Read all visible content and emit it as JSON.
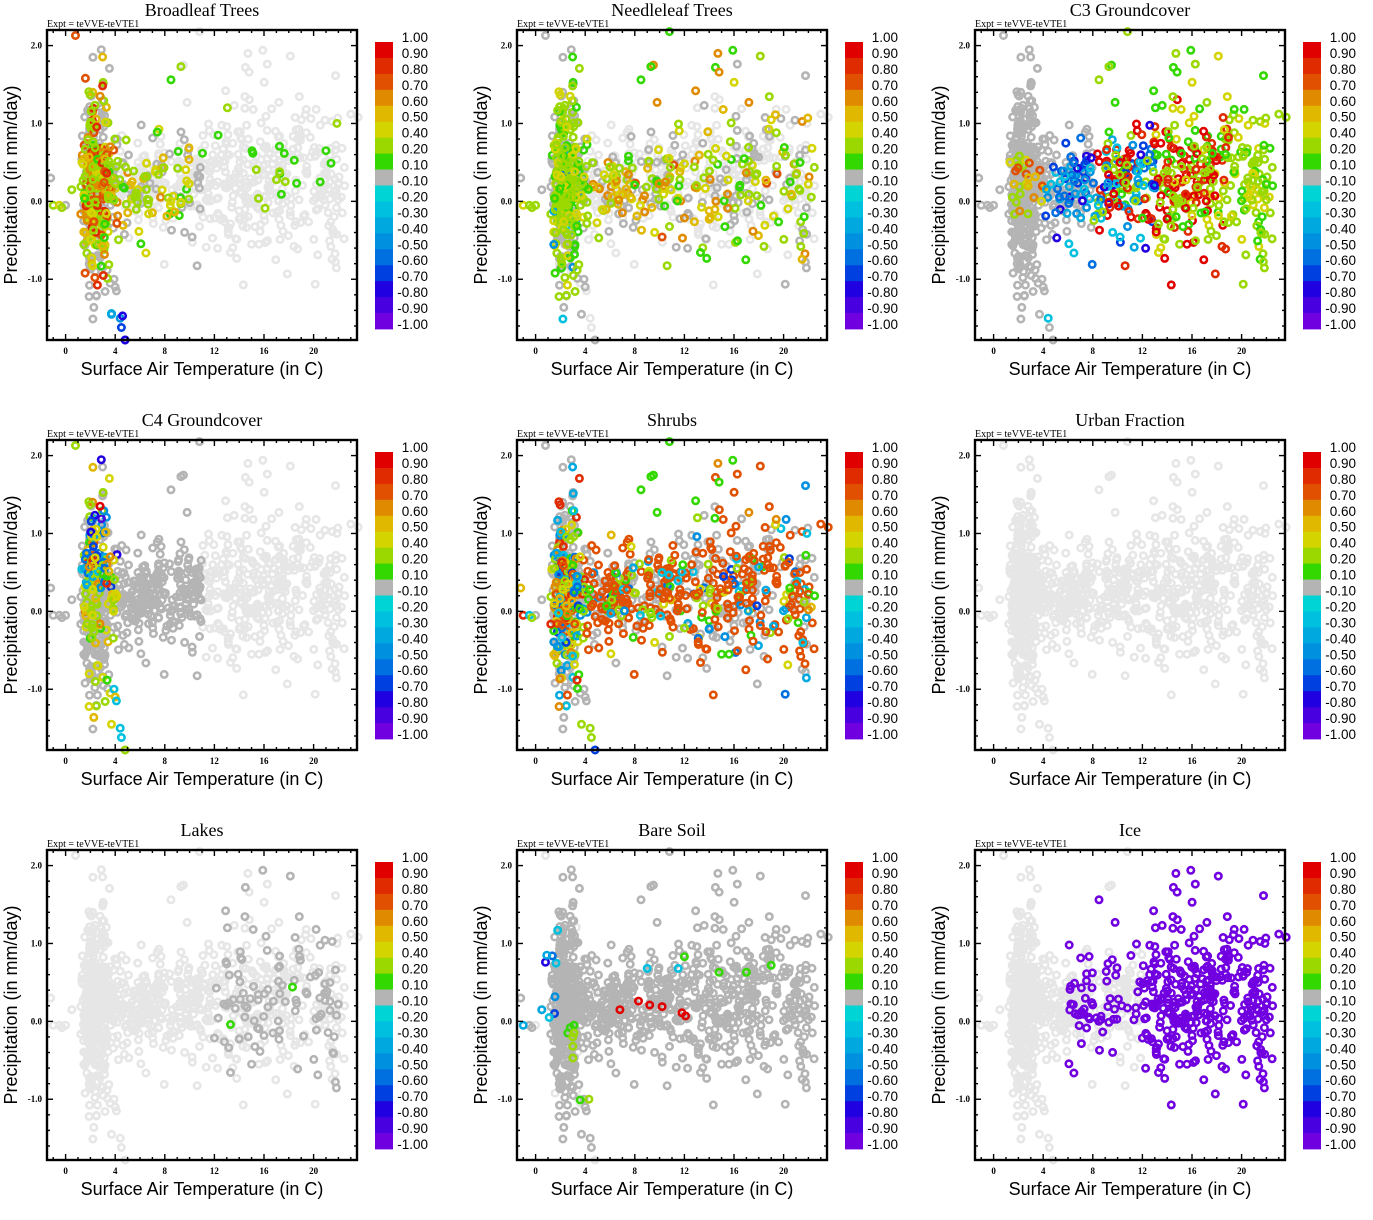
{
  "figure": {
    "description": "3x3 grid of scatter plots: precipitation change vs surface air temperature, colored by correlation with vegetation-fraction change",
    "experiment_label": "Expt = teVVE-teVTE1"
  },
  "chart_data": [
    {
      "type": "scatter",
      "title": "Broadleaf Trees",
      "subtitle": "Expt = teVVE-teVTE1",
      "xlabel": "Surface Air Temperature (in C)",
      "ylabel": "Precipitation (in mm/day)",
      "xlim": [
        -1.5,
        23.5
      ],
      "ylim": [
        -1.78,
        2.2
      ],
      "xticks": [
        0,
        4,
        8,
        12,
        16,
        20
      ],
      "yticks": [
        -1.0,
        0.0,
        1.0,
        2.0
      ],
      "grid": false,
      "colorbar": "right",
      "highlight": "broadleaf"
    },
    {
      "type": "scatter",
      "title": "Needleleaf Trees",
      "subtitle": "Expt = teVVE-teVTE1",
      "xlabel": "Surface Air Temperature (in C)",
      "ylabel": "Precipitation (in mm/day)",
      "xlim": [
        -1.5,
        23.5
      ],
      "ylim": [
        -1.78,
        2.2
      ],
      "xticks": [
        0,
        4,
        8,
        12,
        16,
        20
      ],
      "yticks": [
        -1.0,
        0.0,
        1.0,
        2.0
      ],
      "grid": false,
      "colorbar": "right",
      "highlight": "needleleaf"
    },
    {
      "type": "scatter",
      "title": "C3 Groundcover",
      "subtitle": "Expt = teVVE-teVTE1",
      "xlabel": "Surface Air Temperature (in C)",
      "ylabel": "Precipitation (in mm/day)",
      "xlim": [
        -1.5,
        23.5
      ],
      "ylim": [
        -1.78,
        2.2
      ],
      "xticks": [
        0,
        4,
        8,
        12,
        16,
        20
      ],
      "yticks": [
        -1.0,
        0.0,
        1.0,
        2.0
      ],
      "grid": false,
      "colorbar": "right",
      "highlight": "c3"
    },
    {
      "type": "scatter",
      "title": "C4 Groundcover",
      "subtitle": "Expt = teVVE-teVTE1",
      "xlabel": "Surface Air Temperature (in C)",
      "ylabel": "Precipitation (in mm/day)",
      "xlim": [
        -1.5,
        23.5
      ],
      "ylim": [
        -1.78,
        2.2
      ],
      "xticks": [
        0,
        4,
        8,
        12,
        16,
        20
      ],
      "yticks": [
        -1.0,
        0.0,
        1.0,
        2.0
      ],
      "grid": false,
      "colorbar": "right",
      "highlight": "c4"
    },
    {
      "type": "scatter",
      "title": "Shrubs",
      "subtitle": "Expt = teVVE-teVTE1",
      "xlabel": "Surface Air Temperature (in C)",
      "ylabel": "Precipitation (in mm/day)",
      "xlim": [
        -1.5,
        23.5
      ],
      "ylim": [
        -1.78,
        2.2
      ],
      "xticks": [
        0,
        4,
        8,
        12,
        16,
        20
      ],
      "yticks": [
        -1.0,
        0.0,
        1.0,
        2.0
      ],
      "grid": false,
      "colorbar": "right",
      "highlight": "shrubs"
    },
    {
      "type": "scatter",
      "title": "Urban Fraction",
      "subtitle": "Expt = teVVE-teVTE1",
      "xlabel": "Surface Air Temperature (in C)",
      "ylabel": "Precipitation (in mm/day)",
      "xlim": [
        -1.5,
        23.5
      ],
      "ylim": [
        -1.78,
        2.2
      ],
      "xticks": [
        0,
        4,
        8,
        12,
        16,
        20
      ],
      "yticks": [
        -1.0,
        0.0,
        1.0,
        2.0
      ],
      "grid": false,
      "colorbar": "right",
      "highlight": "urban"
    },
    {
      "type": "scatter",
      "title": "Lakes",
      "subtitle": "Expt = teVVE-teVTE1",
      "xlabel": "Surface Air Temperature (in C)",
      "ylabel": "Precipitation (in mm/day)",
      "xlim": [
        -1.5,
        23.5
      ],
      "ylim": [
        -1.78,
        2.2
      ],
      "xticks": [
        0,
        4,
        8,
        12,
        16,
        20
      ],
      "yticks": [
        -1.0,
        0.0,
        1.0,
        2.0
      ],
      "grid": false,
      "colorbar": "right",
      "highlight": "lakes"
    },
    {
      "type": "scatter",
      "title": "Bare Soil",
      "subtitle": "Expt = teVVE-teVTE1",
      "xlabel": "Surface Air Temperature (in C)",
      "ylabel": "Precipitation (in mm/day)",
      "xlim": [
        -1.5,
        23.5
      ],
      "ylim": [
        -1.78,
        2.2
      ],
      "xticks": [
        0,
        4,
        8,
        12,
        16,
        20
      ],
      "yticks": [
        -1.0,
        0.0,
        1.0,
        2.0
      ],
      "grid": false,
      "colorbar": "right",
      "highlight": "baresoil"
    },
    {
      "type": "scatter",
      "title": "Ice",
      "subtitle": "Expt = teVVE-teVTE1",
      "xlabel": "Surface Air Temperature (in C)",
      "ylabel": "Precipitation (in mm/day)",
      "xlim": [
        -1.5,
        23.5
      ],
      "ylim": [
        -1.78,
        2.2
      ],
      "xticks": [
        0,
        4,
        8,
        12,
        16,
        20
      ],
      "yticks": [
        -1.0,
        0.0,
        1.0,
        2.0
      ],
      "grid": false,
      "colorbar": "right",
      "highlight": "ice"
    }
  ],
  "colorbar": {
    "labels": [
      "1.00",
      "0.90",
      "0.80",
      "0.70",
      "0.60",
      "0.50",
      "0.40",
      "0.20",
      "0.10",
      "-0.10",
      "-0.20",
      "-0.30",
      "-0.40",
      "-0.50",
      "-0.60",
      "-0.70",
      "-0.80",
      "-0.90",
      "-1.00"
    ],
    "colors": [
      "#e00000",
      "#e02a00",
      "#e05000",
      "#e08a00",
      "#e0b800",
      "#d4d400",
      "#9ad800",
      "#32d800",
      "#b4b4b4",
      "#00d4d4",
      "#00c0e0",
      "#00a8e0",
      "#0090e0",
      "#0070e0",
      "#0040e0",
      "#2000e0",
      "#4800e0",
      "#7000e0"
    ]
  },
  "point_colors": {
    "background": "#e6e6e6",
    "insignificant": "#b4b4b4"
  }
}
